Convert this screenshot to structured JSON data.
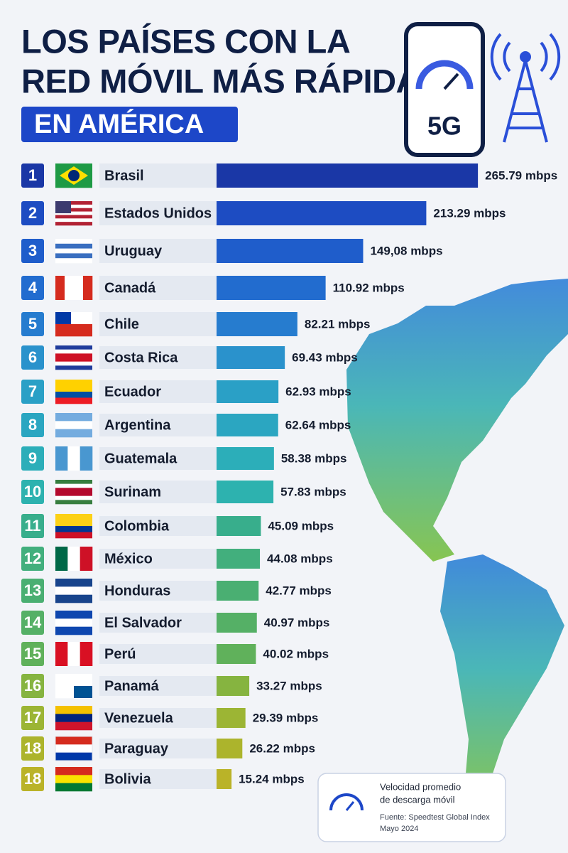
{
  "header": {
    "title_lines": [
      "LOS PAÍSES CON LA",
      "RED MÓVIL MÁS RÁPIDA"
    ],
    "badge": "EN AMÉRICA",
    "icon_label": "5G"
  },
  "chart_data": {
    "type": "bar",
    "ranks": [
      1,
      2,
      3,
      4,
      5,
      6,
      7,
      8,
      9,
      10,
      11,
      12,
      13,
      14,
      15,
      16,
      17,
      18,
      18
    ],
    "categories": [
      "Brasil",
      "Estados Unidos",
      "Uruguay",
      "Canadá",
      "Chile",
      "Costa Rica",
      "Ecuador",
      "Argentina",
      "Guatemala",
      "Surinam",
      "Colombia",
      "México",
      "Honduras",
      "El Salvador",
      "Perú",
      "Panamá",
      "Venezuela",
      "Paraguay",
      "Bolivia"
    ],
    "values": [
      265.79,
      213.29,
      149.08,
      110.92,
      82.21,
      69.43,
      62.93,
      62.64,
      58.38,
      57.83,
      45.09,
      44.08,
      42.77,
      40.97,
      40.02,
      33.27,
      29.39,
      26.22,
      15.24
    ],
    "value_labels": [
      "265.79 mbps",
      "213.29 mbps",
      "149,08 mbps",
      "110.92 mbps",
      "82.21 mbps",
      "69.43 mbps",
      "62.93 mbps",
      "62.64 mbps",
      "58.38 mbps",
      "57.83 mbps",
      "45.09 mbps",
      "44.08 mbps",
      "42.77 mbps",
      "40.97 mbps",
      "40.02 mbps",
      "33.27 mbps",
      "29.39 mbps",
      "26.22 mbps",
      "15.24 mbps"
    ],
    "colors": [
      "#1a37a6",
      "#1d4cc2",
      "#1f5dcb",
      "#226ccf",
      "#267ccf",
      "#2a92cc",
      "#2aa0c6",
      "#2ba6c1",
      "#2caeb9",
      "#2db2af",
      "#38ae8c",
      "#42af7d",
      "#4aaf72",
      "#55b066",
      "#60b15b",
      "#86b440",
      "#9cb534",
      "#acb42c",
      "#bab328"
    ]
  },
  "legend": {
    "title_lines": [
      "Velocidad promedio",
      "de descarga móvil"
    ],
    "source": "Fuente: Speedtest Global Index",
    "date": "Mayo 2024"
  }
}
